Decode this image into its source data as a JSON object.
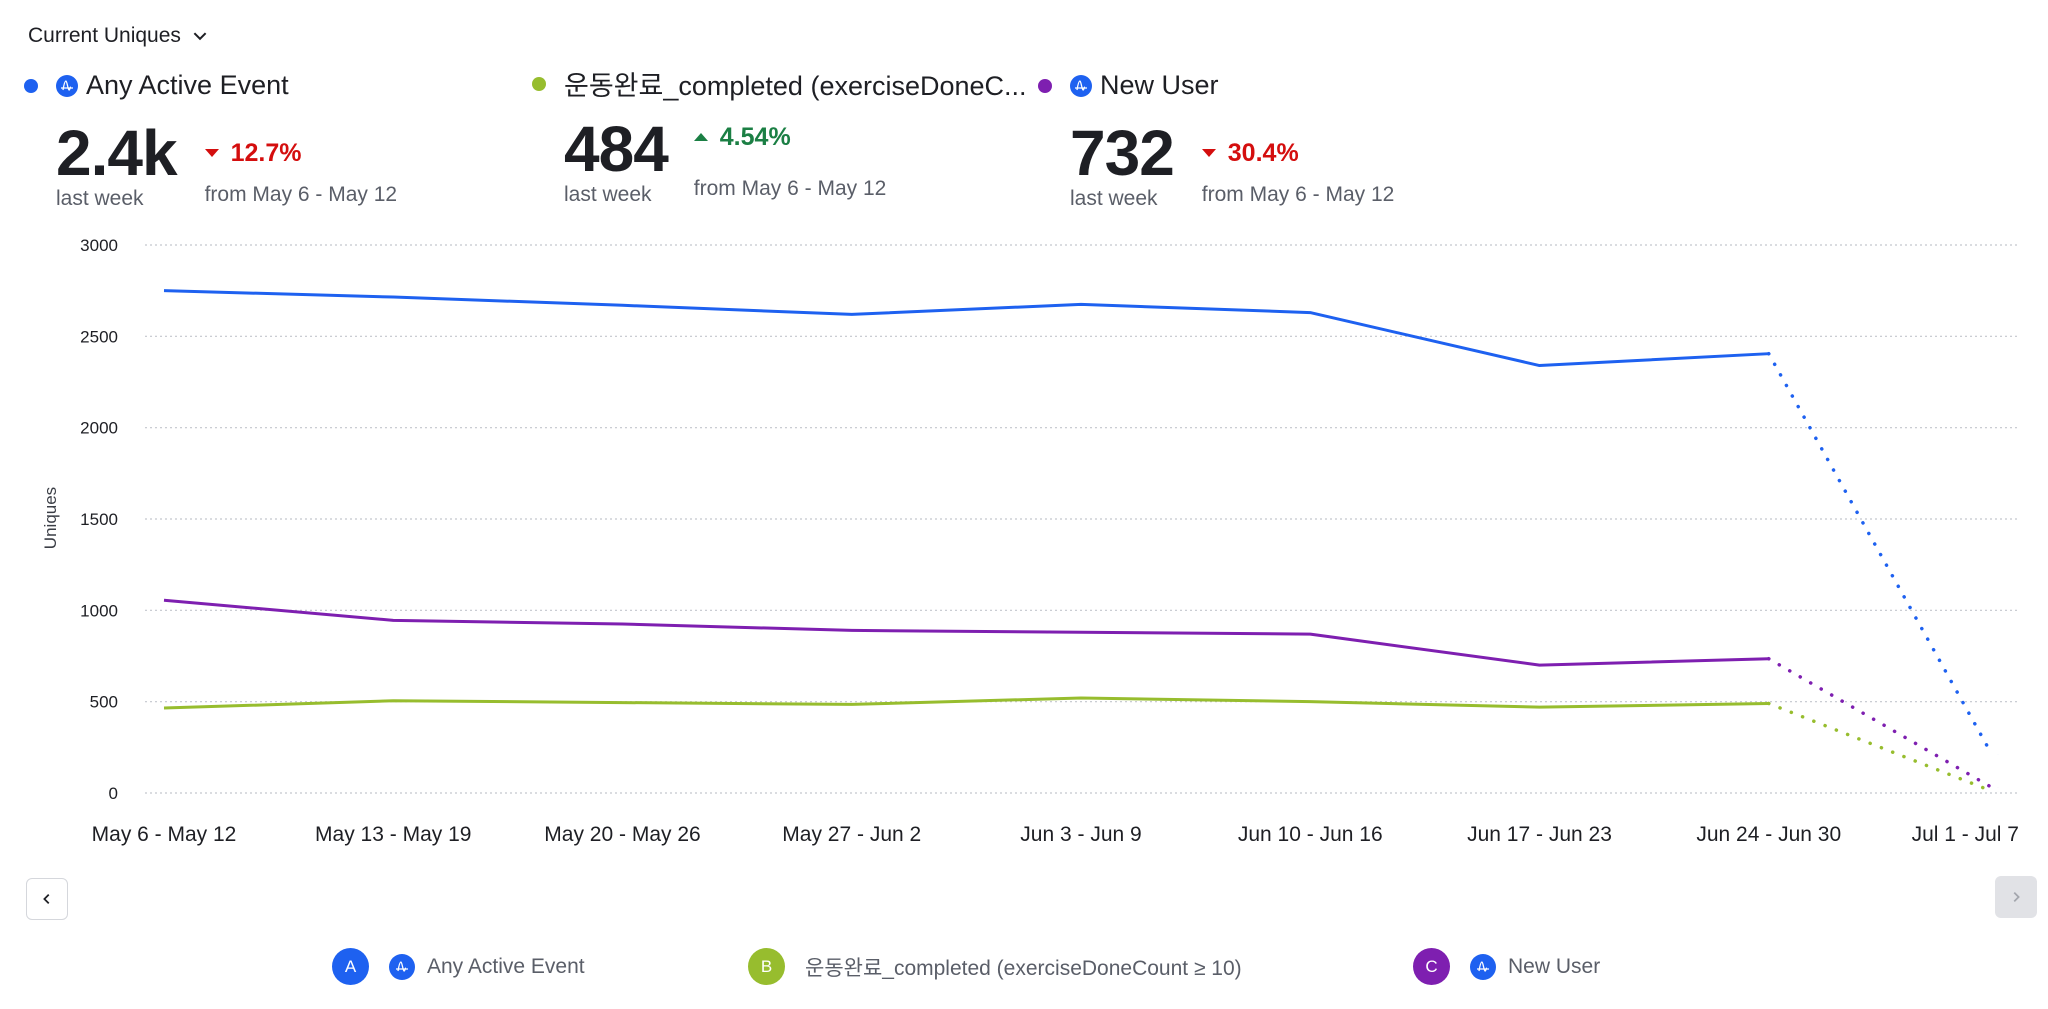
{
  "header": {
    "metric_selector": "Current Uniques"
  },
  "kpis": [
    {
      "name": "Any Active Event",
      "color": "#1e61f0",
      "has_amp_icon": true,
      "value": "2.4k",
      "value_sub": "last week",
      "delta": "12.7%",
      "direction": "down",
      "delta_sub": "from May 6 - May 12"
    },
    {
      "name": "운동완료_completed (exerciseDoneC...",
      "color": "#97bd2e",
      "has_amp_icon": false,
      "value": "484",
      "value_sub": "last week",
      "delta": "4.54%",
      "direction": "up",
      "delta_sub": "from May 6 - May 12"
    },
    {
      "name": "New User",
      "color": "#7e1fb0",
      "has_amp_icon": true,
      "value": "732",
      "value_sub": "last week",
      "delta": "30.4%",
      "direction": "down",
      "delta_sub": "from May 6 - May 12"
    }
  ],
  "legend": [
    {
      "badge": "A",
      "label": "Any Active Event",
      "color": "#1e61f0",
      "has_amp_icon": true
    },
    {
      "badge": "B",
      "label": "운동완료_completed (exerciseDoneCount ≥ 10)",
      "color": "#97bd2e",
      "has_amp_icon": false
    },
    {
      "badge": "C",
      "label": "New User",
      "color": "#7e1fb0",
      "has_amp_icon": true
    }
  ],
  "chart_data": {
    "type": "line",
    "title": "",
    "xlabel": "",
    "ylabel": "Uniques",
    "ylim": [
      0,
      3000
    ],
    "yticks": [
      0,
      500,
      1000,
      1500,
      2000,
      2500,
      3000
    ],
    "grid": true,
    "categories": [
      "May 6 - May 12",
      "May 13 - May 19",
      "May 20 - May 26",
      "May 27 - Jun 2",
      "Jun 3 - Jun 9",
      "Jun 10 - Jun 16",
      "Jun 17 - Jun 23",
      "Jun 24 - Jun 30",
      "Jul 1 - Jul 7"
    ],
    "incomplete_last_period": true,
    "series": [
      {
        "name": "Any Active Event",
        "color": "#1e61f0",
        "values": [
          2750,
          2715,
          2670,
          2620,
          2675,
          2630,
          2340,
          2405,
          210
        ]
      },
      {
        "name": "운동완료_completed (exerciseDoneCount ≥ 10)",
        "color": "#97bd2e",
        "values": [
          465,
          505,
          495,
          485,
          520,
          500,
          470,
          490,
          10
        ]
      },
      {
        "name": "New User",
        "color": "#7e1fb0",
        "values": [
          1055,
          945,
          925,
          890,
          880,
          870,
          700,
          735,
          30
        ]
      }
    ]
  }
}
